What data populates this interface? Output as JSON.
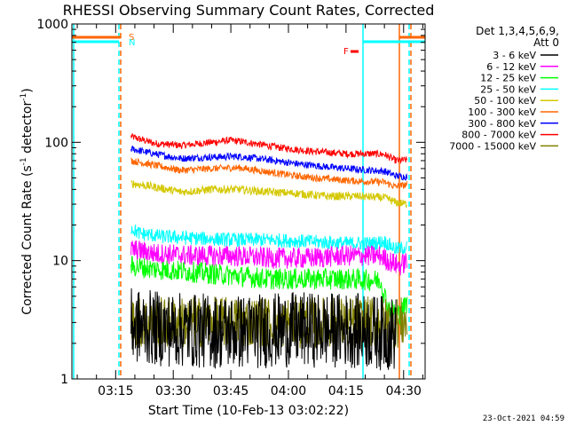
{
  "chart_data": {
    "type": "line",
    "title": "RHESSI Observing Summary Count Rates, Corrected",
    "xlabel": "Start Time (10-Feb-13 03:02:22)",
    "ylabel_main": "Corrected Count Rate (s",
    "ylabel_sup1": "-1",
    "ylabel_mid": " detector",
    "ylabel_sup2": "-1",
    "ylabel_end": ")",
    "yscale": "log",
    "ylim": [
      1,
      1000
    ],
    "xlim_minutes": [
      3.6,
      95.6
    ],
    "x_ticks": [
      {
        "label": "03:15",
        "minute": 15
      },
      {
        "label": "03:30",
        "minute": 30
      },
      {
        "label": "03:45",
        "minute": 45
      },
      {
        "label": "04:00",
        "minute": 60
      },
      {
        "label": "04:15",
        "minute": 75
      },
      {
        "label": "04:30",
        "minute": 90
      }
    ],
    "y_ticks": [
      {
        "label": "1",
        "value": 1
      },
      {
        "label": "10",
        "value": 10
      },
      {
        "label": "100",
        "value": 100
      },
      {
        "label": "1000",
        "value": 1000
      }
    ],
    "legend": {
      "placement": "right",
      "header1": "Det 1,3,4,5,6,9,",
      "header2": "Att 0",
      "entries": [
        {
          "label": "3 - 6 keV",
          "color": "#000000"
        },
        {
          "label": "6 - 12 keV",
          "color": "#ff00ff"
        },
        {
          "label": "12 - 25 keV",
          "color": "#00ff00"
        },
        {
          "label": "25 - 50 keV",
          "color": "#00ffff"
        },
        {
          "label": "50 - 100 keV",
          "color": "#d4c800"
        },
        {
          "label": "100 - 300 keV",
          "color": "#ff6600"
        },
        {
          "label": "300 - 800 keV",
          "color": "#0000ff"
        },
        {
          "label": "800 - 7000 keV",
          "color": "#ff0000"
        },
        {
          "label": "7000 - 15000 keV",
          "color": "#808000"
        }
      ]
    },
    "series": [
      {
        "name": "800 - 7000 keV",
        "color": "#ff0000",
        "noise": 0.03,
        "points": [
          [
            19,
            112
          ],
          [
            25,
            98
          ],
          [
            32,
            94
          ],
          [
            40,
            100
          ],
          [
            45,
            104
          ],
          [
            50,
            99
          ],
          [
            58,
            90
          ],
          [
            66,
            84
          ],
          [
            75,
            80
          ],
          [
            82,
            80
          ],
          [
            85,
            79
          ],
          [
            88,
            70
          ],
          [
            91,
            71
          ]
        ]
      },
      {
        "name": "300 - 800 keV",
        "color": "#0000ff",
        "noise": 0.03,
        "points": [
          [
            19,
            88
          ],
          [
            25,
            80
          ],
          [
            32,
            73
          ],
          [
            40,
            75
          ],
          [
            47,
            76
          ],
          [
            55,
            71
          ],
          [
            62,
            66
          ],
          [
            70,
            62
          ],
          [
            78,
            59
          ],
          [
            85,
            57
          ],
          [
            88,
            52
          ],
          [
            91,
            51
          ]
        ]
      },
      {
        "name": "100 - 300 keV",
        "color": "#ff6600",
        "noise": 0.03,
        "points": [
          [
            19,
            70
          ],
          [
            25,
            64
          ],
          [
            32,
            58
          ],
          [
            40,
            60
          ],
          [
            47,
            61
          ],
          [
            55,
            56
          ],
          [
            62,
            52
          ],
          [
            70,
            49
          ],
          [
            78,
            47
          ],
          [
            85,
            46
          ],
          [
            88,
            42
          ],
          [
            91,
            44
          ]
        ]
      },
      {
        "name": "50 - 100 keV",
        "color": "#d4c800",
        "noise": 0.035,
        "points": [
          [
            19,
            45
          ],
          [
            25,
            42
          ],
          [
            32,
            38
          ],
          [
            40,
            40
          ],
          [
            47,
            40
          ],
          [
            55,
            38
          ],
          [
            62,
            37
          ],
          [
            70,
            35
          ],
          [
            78,
            35
          ],
          [
            85,
            34
          ],
          [
            88,
            31
          ],
          [
            91,
            30
          ]
        ]
      },
      {
        "name": "25 - 50 keV",
        "color": "#00ffff",
        "noise": 0.06,
        "points": [
          [
            19,
            19
          ],
          [
            21,
            17
          ],
          [
            27,
            16
          ],
          [
            35,
            15.5
          ],
          [
            45,
            15
          ],
          [
            55,
            15
          ],
          [
            65,
            14.5
          ],
          [
            75,
            14
          ],
          [
            82,
            14
          ],
          [
            85,
            14.5
          ],
          [
            88,
            12.5
          ],
          [
            91,
            13
          ]
        ]
      },
      {
        "name": "6 - 12 keV",
        "color": "#ff00ff",
        "noise": 0.09,
        "points": [
          [
            19,
            12.5
          ],
          [
            25,
            11.5
          ],
          [
            35,
            11
          ],
          [
            45,
            11
          ],
          [
            55,
            10.5
          ],
          [
            65,
            10.5
          ],
          [
            75,
            11
          ],
          [
            84,
            11
          ],
          [
            86,
            10
          ],
          [
            89,
            9
          ],
          [
            91,
            10
          ]
        ]
      },
      {
        "name": "12 - 25 keV",
        "color": "#00ff00",
        "noise": 0.09,
        "points": [
          [
            19,
            9
          ],
          [
            25,
            8.5
          ],
          [
            35,
            8
          ],
          [
            45,
            7.5
          ],
          [
            55,
            7
          ],
          [
            65,
            7
          ],
          [
            75,
            7
          ],
          [
            84,
            6.8
          ],
          [
            86,
            4
          ],
          [
            89,
            3.5
          ],
          [
            91,
            4.5
          ]
        ]
      },
      {
        "name": "7000 - 15000 keV",
        "color": "#808000",
        "noise": 0.22,
        "points": [
          [
            19,
            3
          ],
          [
            40,
            3
          ],
          [
            60,
            3
          ],
          [
            80,
            3
          ],
          [
            88,
            3
          ],
          [
            91,
            3
          ]
        ]
      },
      {
        "name": "3 - 6 keV",
        "color": "#000000",
        "noise": 0.32,
        "points": [
          [
            19,
            2.8
          ],
          [
            30,
            2.6
          ],
          [
            45,
            2.5
          ],
          [
            60,
            2.6
          ],
          [
            75,
            2.6
          ],
          [
            88,
            2.4
          ]
        ]
      }
    ],
    "annotations": [
      {
        "label": "S",
        "color": "#ff6600"
      },
      {
        "label": "N",
        "color": "#00ffff"
      },
      {
        "label": "F",
        "color": "#ff0000"
      }
    ],
    "footer_date": "23-Oct-2021 04:59"
  }
}
